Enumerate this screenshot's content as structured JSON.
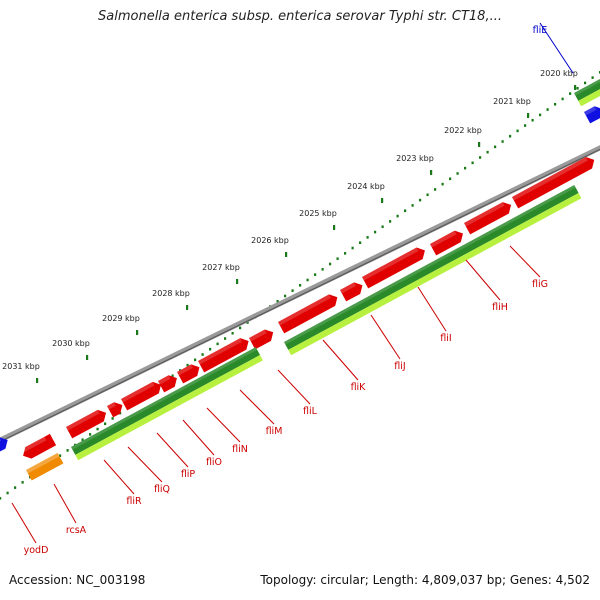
{
  "title": "Salmonella enterica subsp. enterica serovar Typhi str. CT18,...",
  "footer": {
    "accession": "Accession: NC_003198",
    "summary": "Topology: circular; Length: 4,809,037 bp; Genes: 4,502"
  },
  "ticks": [
    "2020 kbp",
    "2021 kbp",
    "2022 kbp",
    "2023 kbp",
    "2024 kbp",
    "2025 kbp",
    "2026 kbp",
    "2027 kbp",
    "2028 kbp",
    "2029 kbp",
    "2030 kbp",
    "2031 kbp"
  ],
  "gene_labels": [
    {
      "name": "fliE",
      "color": "#0000cc"
    },
    {
      "name": "fliG",
      "color": "#cc0000"
    },
    {
      "name": "fliH",
      "color": "#cc0000"
    },
    {
      "name": "fliI",
      "color": "#cc0000"
    },
    {
      "name": "fliJ",
      "color": "#cc0000"
    },
    {
      "name": "fliK",
      "color": "#cc0000"
    },
    {
      "name": "fliL",
      "color": "#cc0000"
    },
    {
      "name": "fliM",
      "color": "#cc0000"
    },
    {
      "name": "fliN",
      "color": "#cc0000"
    },
    {
      "name": "fliO",
      "color": "#cc0000"
    },
    {
      "name": "fliP",
      "color": "#cc0000"
    },
    {
      "name": "fliQ",
      "color": "#cc0000"
    },
    {
      "name": "fliR",
      "color": "#cc0000"
    },
    {
      "name": "rcsA",
      "color": "#cc0000"
    },
    {
      "name": "yodD",
      "color": "#cc0000"
    }
  ],
  "colors": {
    "cds": "#e00000",
    "cds_blue": "#1010e0",
    "orange": "#f08a00",
    "backbone": "#808080",
    "dark_green": "#2a8a2a",
    "light_green": "#b8f040",
    "dots": "#1a7a1a"
  }
}
